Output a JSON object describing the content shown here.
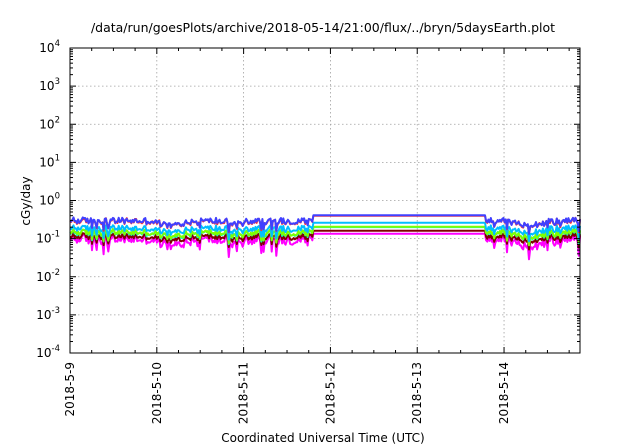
{
  "chart_data": {
    "type": "line",
    "title": "/data/run/goesPlots/archive/2018-05-14/21:00/flux/../bryn/5daysEarth.plot",
    "xlabel": "Coordinated Universal Time (UTC)",
    "ylabel": "cGy/day",
    "y_scale": "log",
    "ylim_exponents": [
      -4,
      4
    ],
    "y_ticks": [
      {
        "base": "10",
        "exp": "-4",
        "value": 0.0001
      },
      {
        "base": "10",
        "exp": "-3",
        "value": 0.001
      },
      {
        "base": "10",
        "exp": "-2",
        "value": 0.01
      },
      {
        "base": "10",
        "exp": "-1",
        "value": 0.1
      },
      {
        "base": "10",
        "exp": "0",
        "value": 1
      },
      {
        "base": "10",
        "exp": "1",
        "value": 10
      },
      {
        "base": "10",
        "exp": "2",
        "value": 100
      },
      {
        "base": "10",
        "exp": "3",
        "value": 1000
      },
      {
        "base": "10",
        "exp": "4",
        "value": 10000
      }
    ],
    "x_range_days": [
      "2018-05-09",
      "2018-05-14 21:00"
    ],
    "x_ticks": [
      "2018-5-9",
      "2018-5-10",
      "2018-5-11",
      "2018-5-12",
      "2018-5-13",
      "2018-5-14"
    ],
    "grid": true,
    "legend": "none",
    "gap_interval": [
      "2018-05-11 19:00",
      "2018-05-13 19:00"
    ],
    "series": [
      {
        "color": "#ff00ff",
        "gap_level": 0.135
      },
      {
        "color": "#800000",
        "gap_level": 0.16
      },
      {
        "color": "#00ffcc",
        "gap_level": 0.2
      },
      {
        "color": "#7fff00",
        "gap_level": 0.205
      },
      {
        "color": "#00bfff",
        "gap_level": 0.26
      },
      {
        "color": "#ff3030",
        "gap_level": 0.4
      },
      {
        "color": "#4040ff",
        "gap_level": 0.41
      }
    ]
  }
}
